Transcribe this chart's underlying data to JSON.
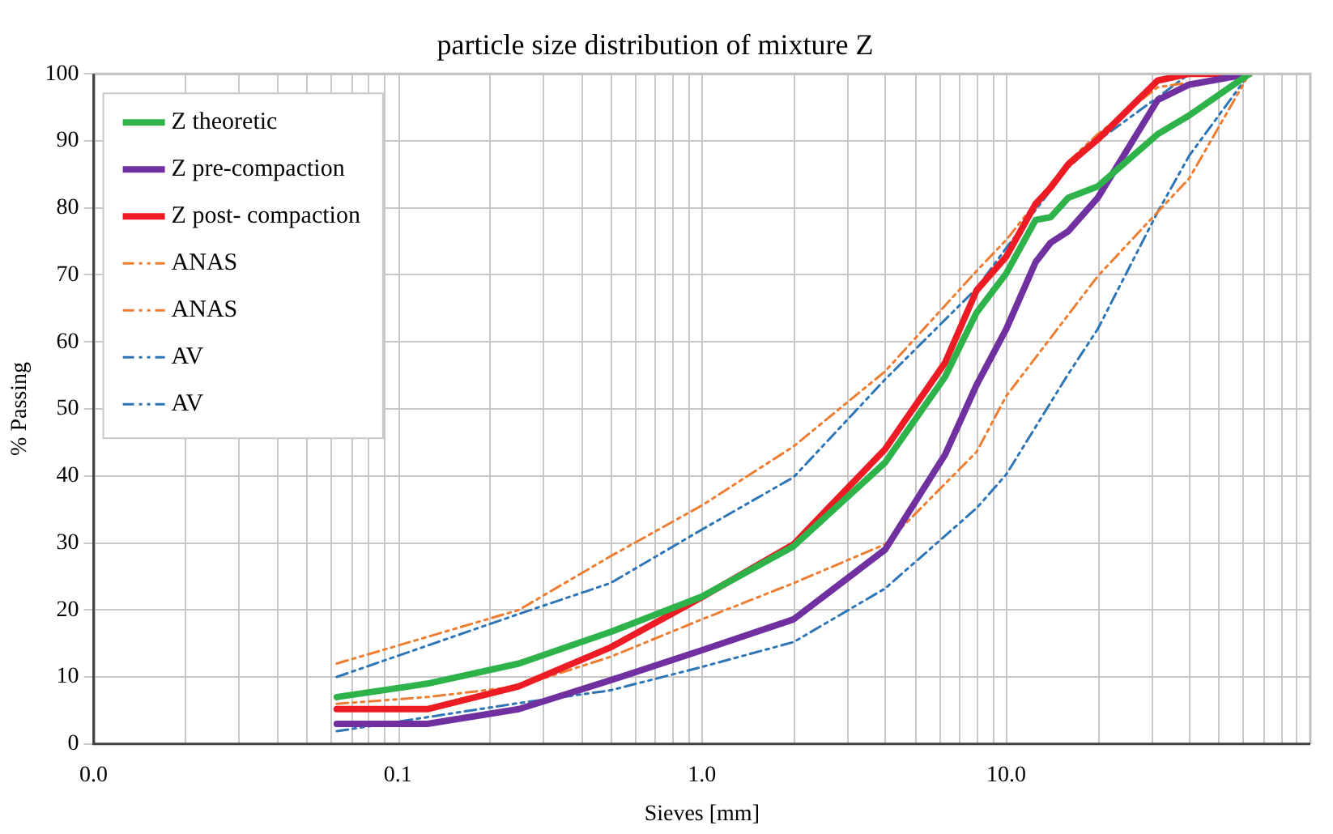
{
  "chart_data": {
    "type": "line",
    "title": "particle size distribution of mixture Z",
    "xlabel": "Sieves [mm]",
    "ylabel": "% Passing",
    "log": "x",
    "xlim": [
      0.01,
      100
    ],
    "xticks": [
      {
        "value": 0.01,
        "label": "0.0"
      },
      0.1,
      {
        "value": 1,
        "label": "1.0"
      },
      {
        "value": 10,
        "label": "10.0"
      }
    ],
    "ylim": [
      0,
      100
    ],
    "yticks": [
      0,
      10,
      20,
      30,
      40,
      50,
      60,
      70,
      80,
      90,
      100
    ],
    "grid": true,
    "legend": "top left",
    "marker": "none",
    "series": [
      {
        "name": "Z theoretic",
        "color": "#2db34a",
        "line_style": "solid",
        "x": [
          0.063,
          0.125,
          0.25,
          0.5,
          1,
          2,
          4,
          6.3,
          8,
          10,
          12.5,
          14,
          16,
          20,
          31.5,
          40,
          63
        ],
        "values": [
          7,
          9,
          12,
          16.7,
          22,
          29.5,
          42,
          54.8,
          64.4,
          70.2,
          78.2,
          78.6,
          81.5,
          83.2,
          91,
          93.8,
          100
        ]
      },
      {
        "name": "Z pre-compaction",
        "color": "#7030a0",
        "line_style": "solid",
        "x": [
          0.063,
          0.125,
          0.25,
          0.5,
          1,
          2,
          4,
          6.3,
          8,
          10,
          12.5,
          14,
          16,
          20,
          31.5,
          40,
          63
        ],
        "values": [
          3,
          3,
          5.2,
          9.5,
          14,
          18.6,
          29,
          43.2,
          53.6,
          61.9,
          71.9,
          74.8,
          76.5,
          81.5,
          96.1,
          98.4,
          100
        ]
      },
      {
        "name": "Z post- compaction",
        "color": "#ed1c24",
        "line_style": "solid",
        "x": [
          0.063,
          0.125,
          0.25,
          0.5,
          1,
          2,
          4,
          6.3,
          8,
          10,
          12.5,
          14,
          16,
          20,
          31.5,
          40,
          63
        ],
        "values": [
          5.2,
          5.2,
          8.6,
          14.4,
          21.9,
          29.8,
          44,
          56.9,
          67.7,
          72.7,
          80.6,
          83,
          86.5,
          90.2,
          99,
          100,
          100
        ]
      },
      {
        "name": "ANAS",
        "color": "#ed7d31",
        "line_style": "dashed",
        "x": [
          0.063,
          0.25,
          0.5,
          1,
          2,
          4,
          8,
          10,
          16,
          20,
          31.5,
          63
        ],
        "values": [
          12,
          20,
          28,
          35.6,
          44.4,
          55.6,
          70.6,
          75.2,
          86.9,
          91,
          98,
          100
        ]
      },
      {
        "name": "ANAS",
        "color": "#ed7d31",
        "line_style": "dashed",
        "x": [
          0.063,
          0.125,
          0.25,
          0.5,
          1,
          2,
          4,
          8,
          10,
          20,
          31.5,
          40,
          63
        ],
        "values": [
          6,
          7,
          8.6,
          13,
          18.6,
          24,
          29.8,
          43.6,
          51.9,
          69.8,
          79.4,
          84.4,
          100
        ]
      },
      {
        "name": "AV",
        "color": "#2e75b6",
        "line_style": "dashed",
        "x": [
          0.063,
          0.25,
          0.5,
          1,
          2,
          4,
          8,
          10,
          16,
          20,
          31.5,
          40,
          63
        ],
        "values": [
          10,
          19.4,
          24,
          32,
          39.8,
          54.4,
          68,
          74,
          86,
          90,
          96.5,
          100,
          100
        ]
      },
      {
        "name": "AV",
        "color": "#2e75b6",
        "line_style": "dashed",
        "x": [
          0.063,
          0.125,
          0.25,
          0.5,
          1,
          2,
          4,
          8,
          10,
          16,
          20,
          31.5,
          40,
          63
        ],
        "values": [
          1.9,
          4,
          6.1,
          8,
          11.5,
          15.2,
          23.2,
          35.2,
          40.2,
          55.2,
          61.9,
          79.4,
          87.8,
          100
        ]
      }
    ]
  }
}
